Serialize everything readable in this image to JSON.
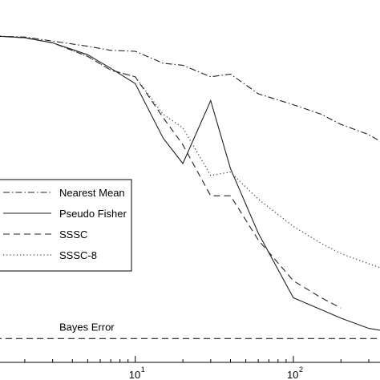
{
  "chart_data": {
    "type": "line",
    "xscale": "log",
    "xlim": [
      1.3,
      370
    ],
    "ylim": [
      0,
      1
    ],
    "x_ticks": [
      {
        "value": 10,
        "base": "10",
        "exp": "1"
      },
      {
        "value": 100,
        "base": "10",
        "exp": "2"
      }
    ],
    "grid": false,
    "legend_position": "center-left",
    "annotation": {
      "text": "Bayes Error"
    },
    "series": [
      {
        "name": "Nearest Mean",
        "style": "dashdot",
        "color": "#222222",
        "x": [
          1.3,
          2,
          3,
          5,
          7,
          10,
          15,
          20,
          30,
          40,
          60,
          100,
          150,
          200,
          300,
          370
        ],
        "y": [
          0.96,
          0.957,
          0.945,
          0.93,
          0.918,
          0.915,
          0.88,
          0.874,
          0.84,
          0.848,
          0.79,
          0.758,
          0.73,
          0.7,
          0.67,
          0.645
        ]
      },
      {
        "name": "Pseudo Fisher",
        "style": "solid",
        "color": "#222222",
        "x": [
          1.3,
          2,
          3,
          5,
          7,
          10,
          15,
          20,
          30,
          40,
          60,
          100,
          150,
          200,
          300,
          370
        ],
        "y": [
          0.96,
          0.955,
          0.94,
          0.905,
          0.865,
          0.82,
          0.66,
          0.585,
          0.77,
          0.57,
          0.38,
          0.19,
          0.155,
          0.13,
          0.1,
          0.093
        ]
      },
      {
        "name": "SSSC",
        "style": "dashed",
        "color": "#222222",
        "x": [
          1.3,
          2,
          3,
          5,
          7,
          10,
          15,
          20,
          30,
          40,
          60,
          100,
          150,
          200
        ],
        "y": [
          0.96,
          0.955,
          0.94,
          0.9,
          0.86,
          0.84,
          0.72,
          0.64,
          0.49,
          0.49,
          0.36,
          0.24,
          0.19,
          0.16
        ]
      },
      {
        "name": "SSSC-8",
        "style": "dotted",
        "color": "#444444",
        "x": [
          1.3,
          2,
          3,
          5,
          7,
          10,
          15,
          20,
          30,
          40,
          60,
          100,
          150,
          200,
          300,
          370
        ],
        "y": [
          0.96,
          0.955,
          0.94,
          0.9,
          0.86,
          0.84,
          0.73,
          0.69,
          0.55,
          0.56,
          0.48,
          0.4,
          0.35,
          0.32,
          0.29,
          0.275
        ]
      },
      {
        "name": "",
        "style": "dashed",
        "color": "#222222",
        "x": [
          1.3,
          370
        ],
        "y": [
          0.07,
          0.07
        ]
      }
    ]
  }
}
